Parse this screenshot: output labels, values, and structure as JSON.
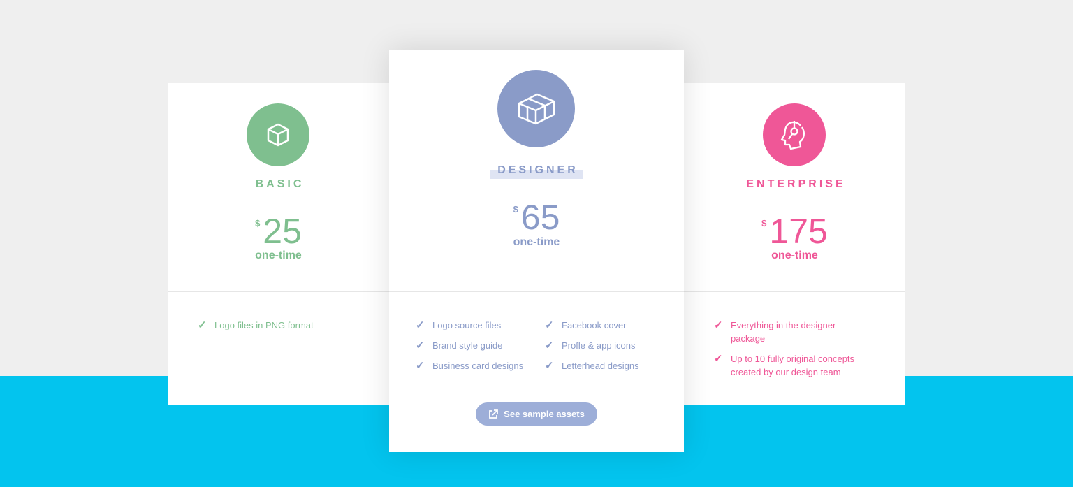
{
  "colors": {
    "basic": "#7fbf8f",
    "designer": "#8a9bc8",
    "enterprise": "#ef5797",
    "background": "#efefef",
    "band": "#03c4ee"
  },
  "plans": [
    {
      "name": "BASIC",
      "currency": "$",
      "price": "25",
      "period": "one-time",
      "icon": "cube-icon",
      "features": [
        "Logo files in PNG format"
      ]
    },
    {
      "name": "DESIGNER",
      "currency": "$",
      "price": "65",
      "period": "one-time",
      "icon": "cubes-icon",
      "features": [
        "Logo source files",
        "Facebook cover",
        "Brand style guide",
        "Profle & app icons",
        "Business card designs",
        "Letterhead designs"
      ],
      "button": "See sample assets"
    },
    {
      "name": "ENTERPRISE",
      "currency": "$",
      "price": "175",
      "period": "one-time",
      "icon": "headset-icon",
      "features": [
        "Everything in the designer package",
        "Up to 10 fully original concepts created by our design team"
      ]
    }
  ]
}
